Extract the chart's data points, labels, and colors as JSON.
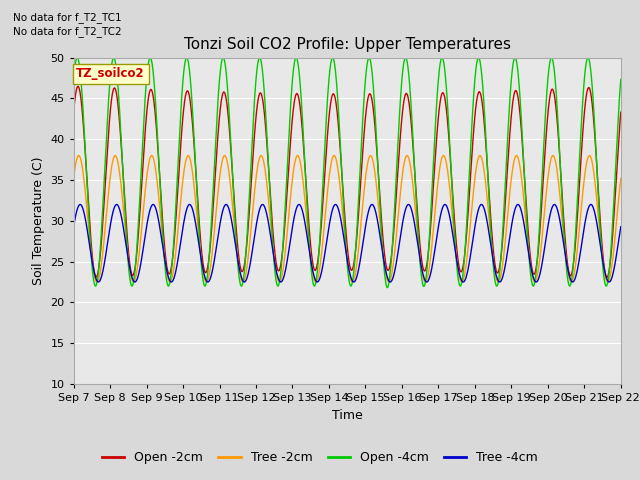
{
  "title": "Tonzi Soil CO2 Profile: Upper Temperatures",
  "ylabel": "Soil Temperature (C)",
  "xlabel": "Time",
  "ylim": [
    10,
    50
  ],
  "xlim": [
    0,
    15
  ],
  "yticks": [
    10,
    15,
    20,
    25,
    30,
    35,
    40,
    45,
    50
  ],
  "xtick_labels": [
    "Sep 7",
    "Sep 8",
    "Sep 9",
    "Sep 10",
    "Sep 11",
    "Sep 12",
    "Sep 13",
    "Sep 14",
    "Sep 15",
    "Sep 16",
    "Sep 17",
    "Sep 18",
    "Sep 19",
    "Sep 20",
    "Sep 21",
    "Sep 22"
  ],
  "annotation1": "No data for f_T2_TC1",
  "annotation2": "No data for f_T2_TC2",
  "box_label": "TZ_soilco2",
  "legend_labels": [
    "Open -2cm",
    "Tree -2cm",
    "Open -4cm",
    "Tree -4cm"
  ],
  "line_colors": [
    "#cc0000",
    "#ff9900",
    "#00cc00",
    "#0000cc"
  ],
  "background_color": "#d9d9d9",
  "plot_bg_color": "#e8e8e8",
  "title_fontsize": 11,
  "axis_fontsize": 9,
  "tick_fontsize": 8,
  "legend_fontsize": 9,
  "n_days": 15,
  "pts_per_day": 144,
  "open_2cm_base": 23.0,
  "open_2cm_amp": 23.5,
  "tree_2cm_base": 22.5,
  "tree_2cm_amp": 15.5,
  "open_4cm_base": 22.0,
  "open_4cm_amp": 28.0,
  "tree_4cm_base": 22.5,
  "tree_4cm_amp": 9.5,
  "phase_open2": 0.62,
  "phase_tree2": 0.64,
  "phase_open4": 0.6,
  "phase_tree4": 0.68
}
